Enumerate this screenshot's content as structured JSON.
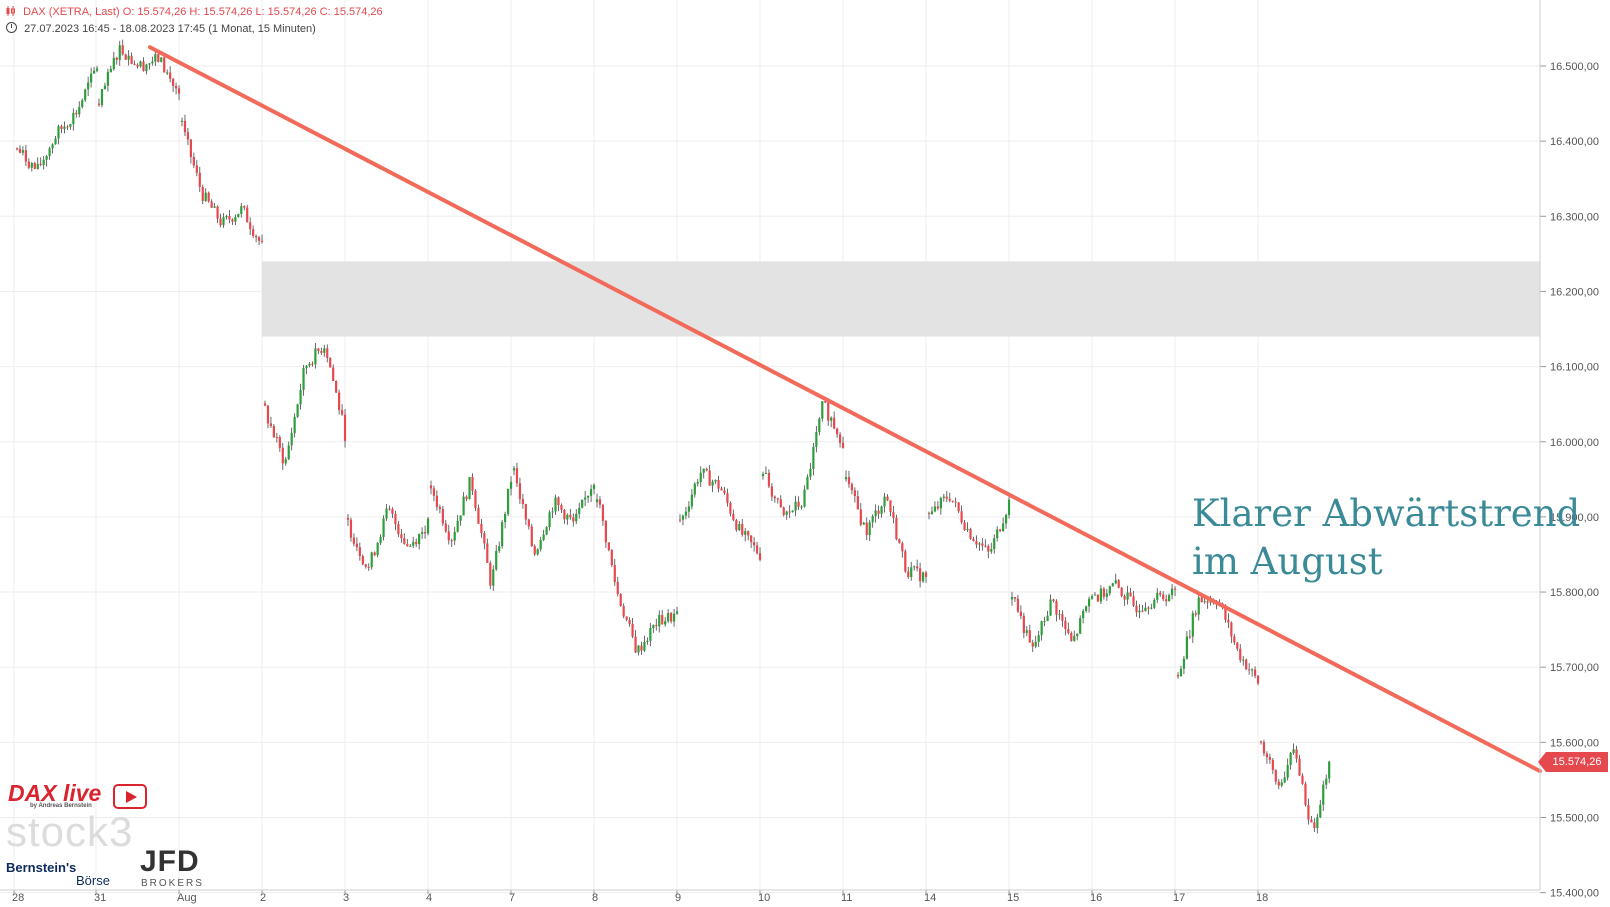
{
  "header": {
    "instrument": "DAX (XETRA, Last)",
    "open": "O: 15.574,26",
    "high": "H: 15.574,26",
    "low": "L: 15.574,26",
    "close": "C: 15.574,26",
    "range": "27.07.2023 16:45 - 18.08.2023 17:45",
    "interval": "(1 Monat, 15 Minuten)"
  },
  "annotation": {
    "line1": "Klarer Abwärtstrend",
    "line2": "im August"
  },
  "last_price_label": "15.574,26",
  "logos": {
    "dax_live": "DAX live",
    "dax_live_sub": "by Andreas Bernstein",
    "stock3": "stock3",
    "bernstein": "Bernstein's",
    "boerse": "Börse",
    "jfd": "JFD",
    "brokers": "BROKERS"
  },
  "colors": {
    "up": "#2e9d3c",
    "down": "#e5484d",
    "trendline": "#f26a5a",
    "zone": "#e3e3e3",
    "annotation": "#3a8a98",
    "grid": "#eeeeee"
  },
  "chart_data": {
    "type": "candlestick",
    "title": "DAX (XETRA, Last)",
    "ylim": [
      15400,
      16600
    ],
    "y_ticks": [
      "15.400,00",
      "15.500,00",
      "15.600,00",
      "15.700,00",
      "15.800,00",
      "15.900,00",
      "16.000,00",
      "16.100,00",
      "16.200,00",
      "16.300,00",
      "16.400,00",
      "16.500,00"
    ],
    "y_tick_values": [
      15400,
      15500,
      15600,
      15700,
      15800,
      15900,
      16000,
      16100,
      16200,
      16300,
      16400,
      16500
    ],
    "x_ticks": [
      "28",
      "31",
      "Aug",
      "2",
      "3",
      "4",
      "7",
      "8",
      "9",
      "10",
      "11",
      "14",
      "15",
      "16",
      "17",
      "18"
    ],
    "grid": true,
    "zone": {
      "from": 16140,
      "to": 16240,
      "start_session": 3
    },
    "trendline": {
      "start_session": 1.65,
      "start_value": 16525,
      "end_session": 18.3,
      "end_value": 15575
    },
    "last_price": 15574.26,
    "sessions": [
      {
        "label": "28",
        "path": [
          16390,
          16360,
          16410,
          16440,
          16500
        ]
      },
      {
        "label": "31",
        "path": [
          16450,
          16525,
          16500,
          16510,
          16460
        ]
      },
      {
        "label": "Aug",
        "path": [
          16420,
          16330,
          16290,
          16310,
          16260
        ]
      },
      {
        "label": "2",
        "path": [
          16040,
          15970,
          16100,
          16130,
          16010
        ]
      },
      {
        "label": "3",
        "path": [
          15890,
          15830,
          15910,
          15860,
          15890
        ]
      },
      {
        "label": "4",
        "path": [
          15940,
          15870,
          15950,
          15810,
          15950
        ]
      },
      {
        "label": "7",
        "path": [
          15960,
          15850,
          15920,
          15890,
          15950
        ]
      },
      {
        "label": "8",
        "path": [
          15930,
          15800,
          15720,
          15760,
          15770
        ]
      },
      {
        "label": "9",
        "path": [
          15890,
          15960,
          15940,
          15880,
          15850
        ]
      },
      {
        "label": "10",
        "path": [
          15960,
          15900,
          15920,
          16050,
          16000
        ]
      },
      {
        "label": "11",
        "path": [
          15950,
          15880,
          15930,
          15830,
          15820
        ]
      },
      {
        "label": "14",
        "path": [
          15900,
          15930,
          15880,
          15850,
          15920
        ]
      },
      {
        "label": "15",
        "path": [
          15800,
          15720,
          15790,
          15730,
          15800
        ]
      },
      {
        "label": "16",
        "path": [
          15790,
          15810,
          15780,
          15790,
          15800
        ]
      },
      {
        "label": "17",
        "path": [
          15690,
          15790,
          15790,
          15720,
          15680
        ]
      },
      {
        "label": "18",
        "path": [
          15600,
          15540,
          15590,
          15480,
          15574
        ]
      }
    ]
  }
}
